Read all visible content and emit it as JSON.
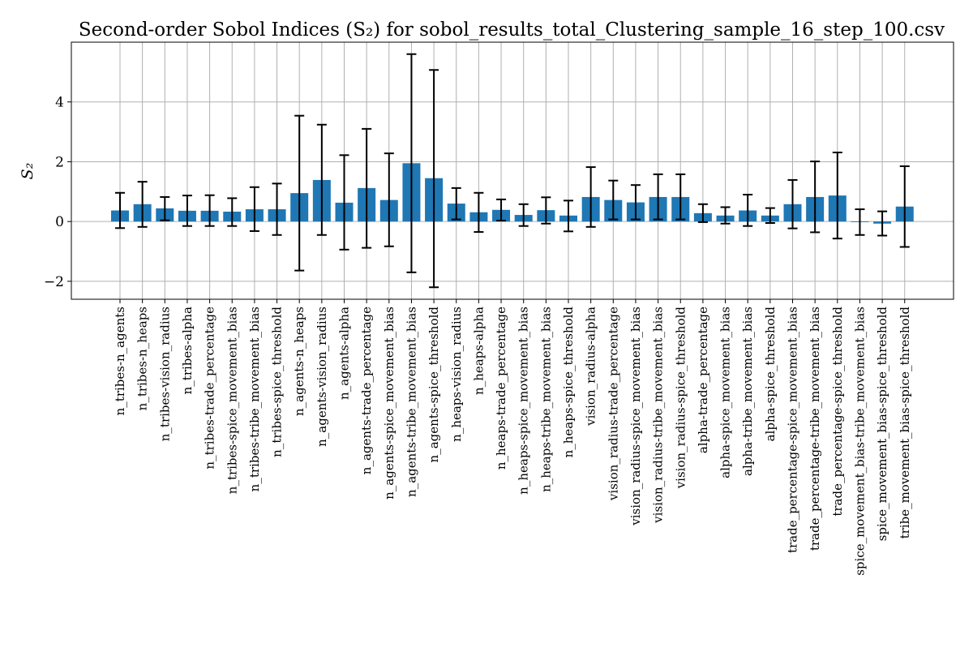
{
  "chart_data": {
    "type": "bar",
    "title": "Second-order Sobol Indices (S₂) for sobol_results_total_Clustering_sample_16_step_100.csv",
    "xlabel": "",
    "ylabel": "S₂",
    "ylim": [
      -2.6,
      6.0
    ],
    "yticks": [
      -2,
      0,
      2,
      4
    ],
    "ytick_labels": [
      "−2",
      "0",
      "2",
      "4"
    ],
    "grid": true,
    "bar_color": "#1f77b4",
    "errorbar_color": "#000000",
    "categories": [
      "n_tribes-n_agents",
      "n_tribes-n_heaps",
      "n_tribes-vision_radius",
      "n_tribes-alpha",
      "n_tribes-trade_percentage",
      "n_tribes-spice_movement_bias",
      "n_tribes-tribe_movement_bias",
      "n_tribes-spice_threshold",
      "n_agents-n_heaps",
      "n_agents-vision_radius",
      "n_agents-alpha",
      "n_agents-trade_percentage",
      "n_agents-spice_movement_bias",
      "n_agents-tribe_movement_bias",
      "n_agents-spice_threshold",
      "n_heaps-vision_radius",
      "n_heaps-alpha",
      "n_heaps-trade_percentage",
      "n_heaps-spice_movement_bias",
      "n_heaps-tribe_movement_bias",
      "n_heaps-spice_threshold",
      "vision_radius-alpha",
      "vision_radius-trade_percentage",
      "vision_radius-spice_movement_bias",
      "vision_radius-tribe_movement_bias",
      "vision_radius-spice_threshold",
      "alpha-trade_percentage",
      "alpha-spice_movement_bias",
      "alpha-tribe_movement_bias",
      "alpha-spice_threshold",
      "trade_percentage-spice_movement_bias",
      "trade_percentage-tribe_movement_bias",
      "trade_percentage-spice_threshold",
      "spice_movement_bias-tribe_movement_bias",
      "spice_movement_bias-spice_threshold",
      "tribe_movement_bias-spice_threshold"
    ],
    "values": [
      0.37,
      0.58,
      0.44,
      0.36,
      0.36,
      0.33,
      0.41,
      0.41,
      0.95,
      1.39,
      0.63,
      1.12,
      0.72,
      1.95,
      1.45,
      0.6,
      0.31,
      0.39,
      0.22,
      0.38,
      0.2,
      0.82,
      0.72,
      0.64,
      0.82,
      0.82,
      0.28,
      0.2,
      0.37,
      0.2,
      0.58,
      0.82,
      0.87,
      -0.02,
      -0.07,
      0.5
    ],
    "err_low": [
      -0.22,
      -0.18,
      0.04,
      -0.15,
      -0.15,
      -0.15,
      -0.32,
      -0.45,
      -1.64,
      -0.45,
      -0.94,
      -0.88,
      -0.83,
      -1.7,
      -2.2,
      0.07,
      -0.35,
      0.03,
      -0.15,
      -0.07,
      -0.33,
      -0.18,
      0.07,
      0.07,
      0.07,
      0.07,
      -0.02,
      -0.07,
      -0.15,
      -0.05,
      -0.23,
      -0.36,
      -0.57,
      -0.45,
      -0.47,
      -0.85
    ],
    "err_high": [
      0.96,
      1.33,
      0.82,
      0.87,
      0.88,
      0.78,
      1.15,
      1.27,
      3.54,
      3.24,
      2.22,
      3.1,
      2.28,
      5.6,
      5.07,
      1.12,
      0.96,
      0.74,
      0.58,
      0.81,
      0.7,
      1.82,
      1.37,
      1.22,
      1.58,
      1.58,
      0.58,
      0.48,
      0.9,
      0.45,
      1.39,
      2.01,
      2.31,
      0.41,
      0.34,
      1.85
    ]
  }
}
